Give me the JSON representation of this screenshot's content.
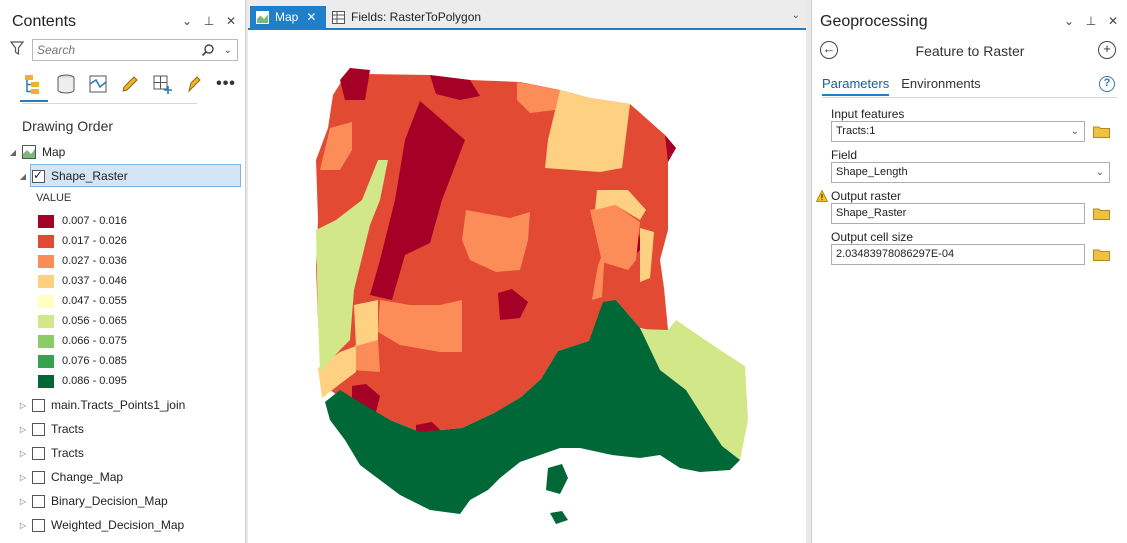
{
  "contents": {
    "title": "Contents",
    "search_placeholder": "Search",
    "section": "Drawing Order",
    "map_label": "Map",
    "selected_layer": "Shape_Raster",
    "legend_header": "VALUE",
    "legend": [
      {
        "label": "0.007 - 0.016",
        "color": "#a50026"
      },
      {
        "label": "0.017 - 0.026",
        "color": "#e34a33"
      },
      {
        "label": "0.027 - 0.036",
        "color": "#fc8d59"
      },
      {
        "label": "0.037 - 0.046",
        "color": "#fed081"
      },
      {
        "label": "0.047 - 0.055",
        "color": "#ffffbf"
      },
      {
        "label": "0.056 - 0.065",
        "color": "#d2e888"
      },
      {
        "label": "0.066 - 0.075",
        "color": "#8ccb68"
      },
      {
        "label": "0.076 - 0.085",
        "color": "#33a352"
      },
      {
        "label": "0.086 - 0.095",
        "color": "#006837"
      }
    ],
    "other_layers": [
      "main.Tracts_Points1_join",
      "Tracts",
      "Tracts",
      "Change_Map",
      "Binary_Decision_Map",
      "Weighted_Decision_Map"
    ]
  },
  "tabs": {
    "map": "Map",
    "fields": "Fields:  RasterToPolygon"
  },
  "gp": {
    "title": "Geoprocessing",
    "tool": "Feature to Raster",
    "tab_parameters": "Parameters",
    "tab_environments": "Environments",
    "input_features_label": "Input features",
    "input_features_value": "Tracts:1",
    "field_label": "Field",
    "field_value": "Shape_Length",
    "output_raster_label": "Output raster",
    "output_raster_value": "Shape_Raster",
    "cell_size_label": "Output cell size",
    "cell_size_value": "2.03483978086297E-04"
  },
  "colors": {
    "accent": "#1f7fc9",
    "dark_red": "#a50026",
    "red": "#e34a33",
    "orange": "#fc8d59",
    "light_orange": "#fed081",
    "light_green": "#d2e888",
    "dark_green": "#006837"
  }
}
